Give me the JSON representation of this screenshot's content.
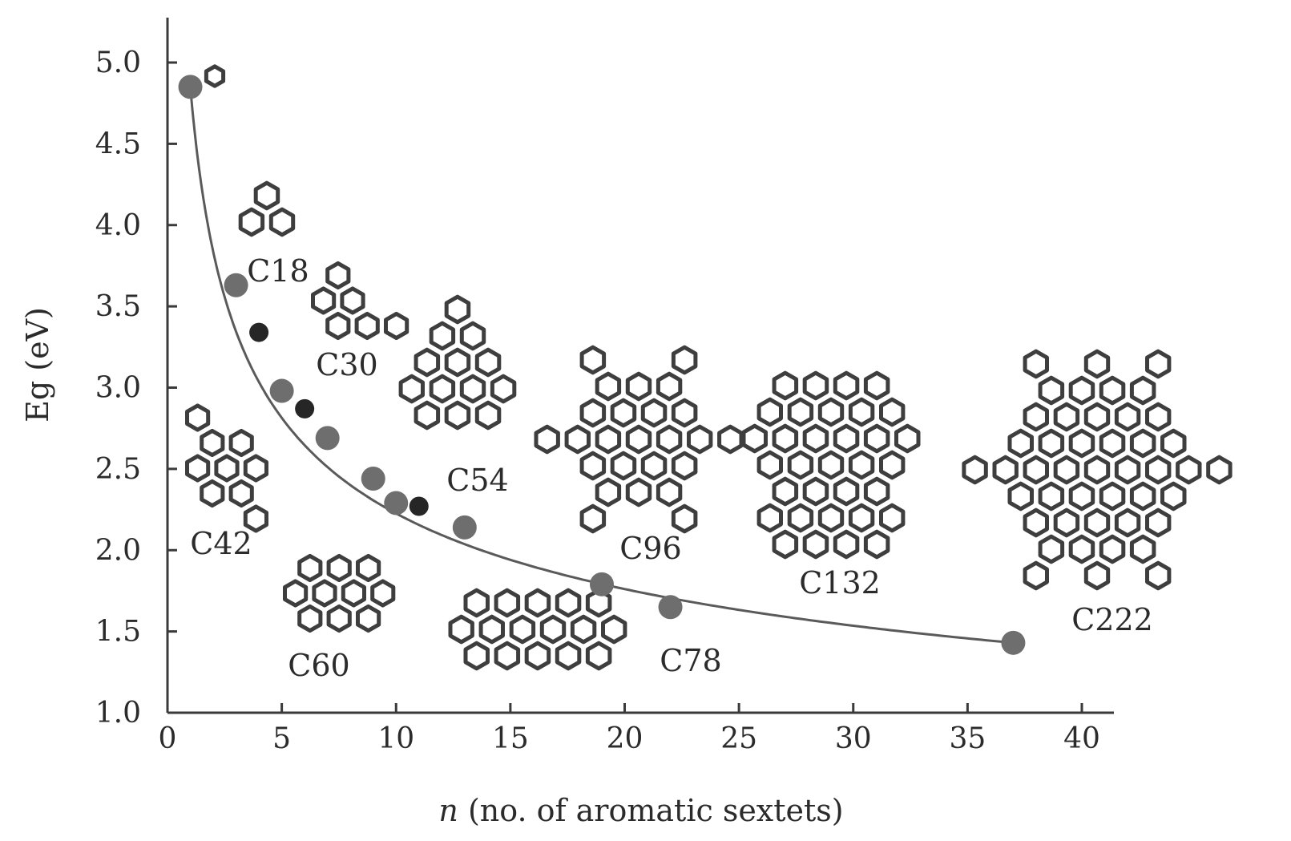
{
  "chart_data": {
    "type": "scatter",
    "title": "",
    "xlabel_italic": "n",
    "xlabel_rest": " (no. of aromatic sextets)",
    "ylabel": "Eg (eV)",
    "xlim": [
      0,
      40
    ],
    "ylim": [
      1.0,
      5.0
    ],
    "x_ticks": [
      "0",
      "5",
      "10",
      "15",
      "20",
      "25",
      "30",
      "35",
      "40"
    ],
    "y_ticks": [
      "1.0",
      "1.5",
      "2.0",
      "2.5",
      "3.0",
      "3.5",
      "4.0",
      "4.5",
      "5.0"
    ],
    "series": [
      {
        "color": "#6e6e6e",
        "points": [
          {
            "x": 1,
            "y": 4.85
          },
          {
            "x": 3,
            "y": 3.63
          },
          {
            "x": 5,
            "y": 2.98
          },
          {
            "x": 7,
            "y": 2.69
          },
          {
            "x": 9,
            "y": 2.44
          },
          {
            "x": 10,
            "y": 2.29
          },
          {
            "x": 13,
            "y": 2.14
          },
          {
            "x": 19,
            "y": 1.79
          },
          {
            "x": 22,
            "y": 1.65
          },
          {
            "x": 37,
            "y": 1.43
          }
        ]
      },
      {
        "color": "#262626",
        "points": [
          {
            "x": 4,
            "y": 3.34
          },
          {
            "x": 6,
            "y": 2.87
          },
          {
            "x": 11,
            "y": 2.27
          }
        ]
      }
    ],
    "fit_curve": "power-law fit through the data",
    "molecules": [
      {
        "label": "",
        "icon": "benzene-hexagon-icon",
        "n": 1
      },
      {
        "label": "C18",
        "icon": "triphenylene-icon",
        "n": 3
      },
      {
        "label": "C30",
        "icon": "triangular-pah-c30-icon",
        "n": 5
      },
      {
        "label": "C42",
        "icon": "coronene-like-c42-icon",
        "n": 7
      },
      {
        "label": "C54",
        "icon": "rhombic-pah-c54-icon",
        "n": 9
      },
      {
        "label": "C60",
        "icon": "hexagonal-pah-c60-icon",
        "n": 10
      },
      {
        "label": "C78",
        "icon": "elongated-pah-c78-icon",
        "n": 13
      },
      {
        "label": "C96",
        "icon": "star-pah-c96-icon",
        "n": 19
      },
      {
        "label": "C132",
        "icon": "hexagonal-pah-c132-icon",
        "n": 22
      },
      {
        "label": "C222",
        "icon": "hexagonal-pah-c222-icon",
        "n": 37
      }
    ]
  }
}
